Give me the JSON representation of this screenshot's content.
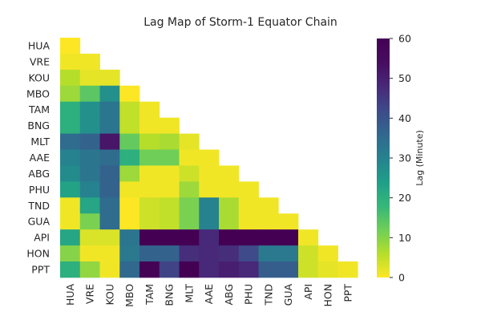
{
  "chart_data": {
    "type": "heatmap",
    "title": "Lag Map of Storm-1 Equator Chain",
    "xlabel": "",
    "ylabel": "",
    "row_labels": [
      "HUA",
      "VRE",
      "KOU",
      "MBO",
      "TAM",
      "BNG",
      "MLT",
      "AAE",
      "ABG",
      "PHU",
      "TND",
      "GUA",
      "API",
      "HON",
      "PPT"
    ],
    "col_labels": [
      "HUA",
      "VRE",
      "KOU",
      "MBO",
      "TAM",
      "BNG",
      "MLT",
      "AAE",
      "ABG",
      "PHU",
      "TND",
      "GUA",
      "API",
      "HON",
      "PPT"
    ],
    "mask": "upper triangle above diagonal",
    "values": [
      [
        0
      ],
      [
        1,
        1
      ],
      [
        6,
        2,
        2
      ],
      [
        8,
        14,
        27,
        0
      ],
      [
        20,
        27,
        33,
        5,
        1
      ],
      [
        20,
        27,
        33,
        5,
        1,
        1
      ],
      [
        35,
        37,
        52,
        13,
        6,
        7,
        2
      ],
      [
        30,
        33,
        35,
        20,
        12,
        12,
        1,
        1
      ],
      [
        28,
        33,
        37,
        8,
        1,
        1,
        4,
        1,
        1
      ],
      [
        23,
        30,
        37,
        1,
        1,
        1,
        8,
        1,
        1,
        1
      ],
      [
        1,
        22,
        35,
        0,
        4,
        5,
        11,
        30,
        7,
        1,
        1
      ],
      [
        1,
        11,
        35,
        0,
        4,
        5,
        11,
        30,
        7,
        1,
        1,
        1
      ],
      [
        22,
        3,
        3,
        33,
        60,
        60,
        60,
        48,
        60,
        60,
        60,
        60,
        1
      ],
      [
        10,
        1,
        1,
        32,
        37,
        37,
        47,
        48,
        47,
        42,
        32,
        32,
        4,
        1
      ],
      [
        20,
        9,
        1,
        36,
        59,
        43,
        60,
        48,
        50,
        48,
        38,
        38,
        4,
        2,
        1
      ]
    ],
    "colorbar": {
      "label": "Lag (Minute)",
      "min": 0,
      "max": 60,
      "ticks": [
        0,
        10,
        20,
        30,
        40,
        50,
        60
      ],
      "colormap": "viridis_r"
    },
    "grid": false
  }
}
